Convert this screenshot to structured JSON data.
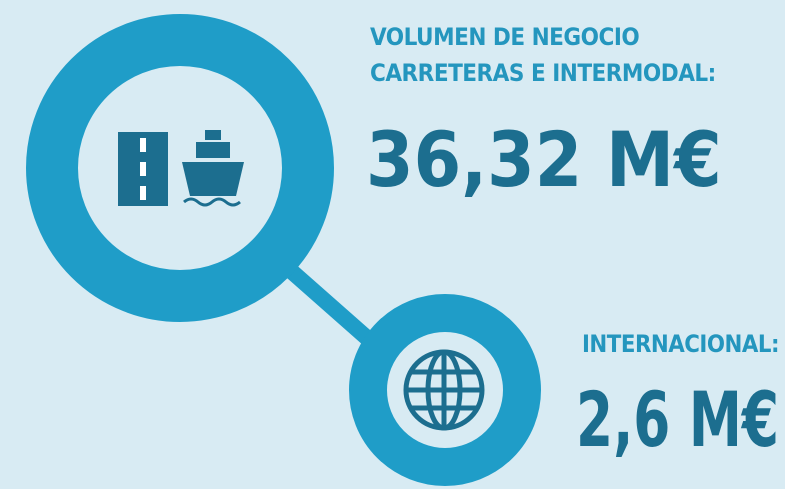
{
  "blocks": [
    {
      "label_lines": [
        "VOLUMEN DE NEGOCIO",
        "CARRETERAS E INTERMODAL:"
      ],
      "value": "36,32 M€"
    },
    {
      "label_lines": [
        "INTERNACIONAL:"
      ],
      "value": "2,6 M€"
    }
  ]
}
